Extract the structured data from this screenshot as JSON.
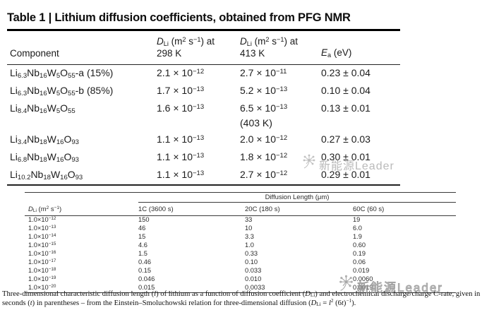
{
  "title": "Table 1 | Lithium diffusion coefficients, obtained from PFG NMR",
  "top_table": {
    "headers": {
      "component": "Component",
      "d298": "*D*_{Li} (m^{2} s^{−1}) at\n298 K",
      "d413": "*D*_{Li} (m^{2} s^{−1}) at\n413 K",
      "ea": "*E*_{a} (eV)"
    },
    "rows": [
      {
        "component": "Li_{6.3}Nb_{16}W_{5}O_{55}-a (15%)",
        "d298": "2.1 × 10^{−12}",
        "d413": "2.7 × 10^{−11}",
        "ea": "0.23 ± 0.04"
      },
      {
        "component": "Li_{6.3}Nb_{16}W_{5}O_{55}-b (85%)",
        "d298": "1.7 × 10^{−13}",
        "d413": "5.2 × 10^{−13}",
        "ea": "0.10 ± 0.04"
      },
      {
        "component": "Li_{8.4}Nb_{16}W_{5}O_{55}",
        "d298": "1.6 × 10^{−13}",
        "d413": "6.5 × 10^{−13}\n(403 K)",
        "ea": "0.13 ± 0.01"
      },
      {
        "component": "Li_{3.4}Nb_{18}W_{16}O_{93}",
        "d298": "1.1 × 10^{−13}",
        "d413": "2.0 × 10^{−12}",
        "ea": "0.27 ± 0.03"
      },
      {
        "component": "Li_{6.8}Nb_{18}W_{16}O_{93}",
        "d298": "1.1 × 10^{−13}",
        "d413": "1.8 × 10^{−12}",
        "ea": "0.30 ± 0.01"
      },
      {
        "component": "Li_{10.2}Nb_{18}W_{16}O_{93}",
        "d298": "1.1 × 10^{−13}",
        "d413": "2.7 × 10^{−12}",
        "ea": "0.29 ± 0.01"
      }
    ]
  },
  "bottom_table": {
    "span_header": "Diffusion Length (μm)",
    "headers": {
      "dli": "*D*_{Li} (m^{2} s^{−1})",
      "c1": "1C (3600 s)",
      "c20": "20C (180 s)",
      "c60": "60C (60 s)"
    },
    "rows": [
      [
        "1.0×10^{−12}",
        "150",
        "33",
        "19"
      ],
      [
        "1.0×10^{−13}",
        "46",
        "10",
        "6.0"
      ],
      [
        "1.0×10^{−14}",
        "15",
        "3.3",
        "1.9"
      ],
      [
        "1.0×10^{−15}",
        "4.6",
        "1.0",
        "0.60"
      ],
      [
        "1.0×10^{−16}",
        "1.5",
        "0.33",
        "0.19"
      ],
      [
        "1.0×10^{−17}",
        "0.46",
        "0.10",
        "0.06"
      ],
      [
        "1.0×10^{−18}",
        "0.15",
        "0.033",
        "0.019"
      ],
      [
        "1.0×10^{−19}",
        "0.046",
        "0.010",
        "0.0060"
      ],
      [
        "1.0×10^{−20}",
        "0.015",
        "0.0033",
        "0.0019"
      ]
    ]
  },
  "footnote": "Three-dimensional characteristic diffusion length (*l*) of lithium as a function of diffusion coefficient (*D*_{Li}) and electrochemical discharge/charge C-rate, given in seconds (*t*) in parentheses – from the Einstein–Smoluchowski relation for three-dimensional diffusion (*D*_{Li} = *l*^{2} (6*t*)^{−1}).",
  "watermark": {
    "text": "新能源Leader",
    "color": "#a3a3a3"
  }
}
